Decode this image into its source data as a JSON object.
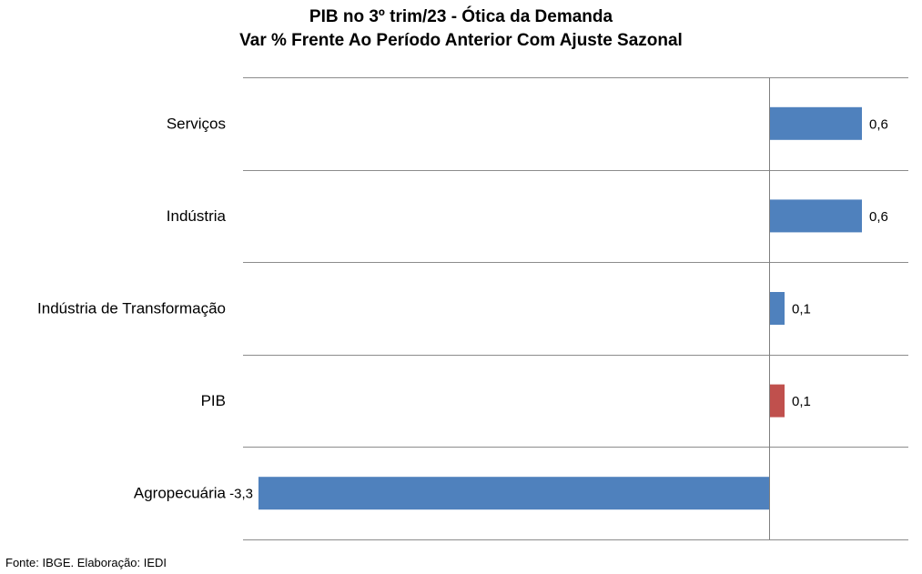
{
  "chart_data": {
    "type": "bar",
    "orientation": "horizontal",
    "title": "PIB no 3º trim/23 - Ótica da Demanda",
    "subtitle": "Var % Frente Ao Período Anterior Com Ajuste Sazonal",
    "categories": [
      "Serviços",
      "Indústria",
      "Indústria de Transformação",
      "PIB",
      "Agropecuária"
    ],
    "values": [
      0.6,
      0.6,
      0.1,
      0.1,
      -3.3
    ],
    "data_labels": [
      "0,6",
      "0,6",
      "0,1",
      "0,1",
      "-3,3"
    ],
    "bar_colors": [
      "#4F81BD",
      "#4F81BD",
      "#4F81BD",
      "#C0504D",
      "#4F81BD"
    ],
    "xlim": [
      -3.4,
      0.9
    ],
    "grid": "horizontal separators",
    "legend": "none"
  },
  "source": "Fonte: IBGE. Elaboração: IEDI"
}
